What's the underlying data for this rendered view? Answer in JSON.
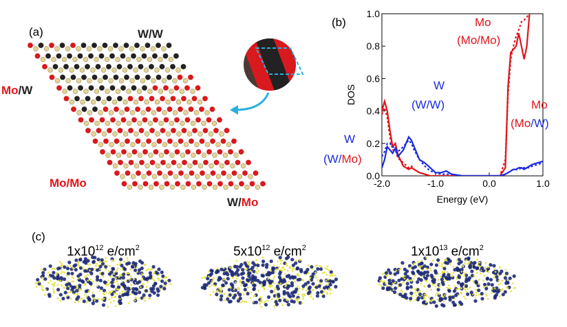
{
  "panel_a": {
    "label": "(a)",
    "top": "W/W",
    "left": [
      "Mo",
      "/W"
    ],
    "bottom_left": "Mo/Mo",
    "bottom_right": [
      "W/",
      "Mo"
    ]
  },
  "chart_data": {
    "type": "line",
    "label": "(b)",
    "xlabel": "Energy (eV)",
    "ylabel": "DOS",
    "x": [
      -2.0,
      -1.95,
      -1.9,
      -1.85,
      -1.8,
      -1.75,
      -1.7,
      -1.6,
      -1.5,
      -1.45,
      -1.4,
      -1.3,
      -1.2,
      -1.1,
      -1.0,
      -0.9,
      -0.8,
      -0.7,
      -0.5,
      0.0,
      0.2,
      0.3,
      0.35,
      0.4,
      0.45,
      0.5,
      0.55,
      0.6,
      0.65,
      0.7,
      0.75,
      0.8,
      0.9,
      1.0
    ],
    "series": [
      {
        "color": "#e0141b",
        "style": "solid",
        "values": [
          0.4,
          0.46,
          0.4,
          0.28,
          0.18,
          0.2,
          0.13,
          0.06,
          0.04,
          0.05,
          0.04,
          0.02,
          0.01,
          0,
          0,
          0,
          0,
          0,
          0,
          0,
          0,
          0.05,
          0.55,
          0.76,
          0.78,
          0.8,
          0.88,
          0.8,
          0.72,
          0.8,
          1.0,
          null,
          null,
          null
        ]
      },
      {
        "color": "#e0141b",
        "style": "dotted",
        "values": [
          0.38,
          0.42,
          0.36,
          0.24,
          0.16,
          0.16,
          0.11,
          0.08,
          0.05,
          0.06,
          0.04,
          0.02,
          0.01,
          0,
          0,
          0,
          0,
          0,
          0,
          0,
          0,
          0.1,
          0.5,
          0.72,
          0.8,
          0.86,
          0.9,
          0.95,
          0.96,
          0.98,
          1.0,
          null,
          null,
          null
        ]
      },
      {
        "color": "#1a2be0",
        "style": "solid",
        "values": [
          0.05,
          0.1,
          0.18,
          0.16,
          0.14,
          0.17,
          0.12,
          0.16,
          0.24,
          0.22,
          0.18,
          0.1,
          0.08,
          0.05,
          0.02,
          0.02,
          0.03,
          0.01,
          0,
          0,
          0,
          0.01,
          0.02,
          0.03,
          0.04,
          0.04,
          0.05,
          0.05,
          0.04,
          0.05,
          0.06,
          0.07,
          0.08,
          0.09
        ]
      },
      {
        "color": "#1a2be0",
        "style": "dotted",
        "values": [
          0.12,
          0.15,
          0.2,
          0.2,
          0.18,
          0.17,
          0.15,
          0.18,
          0.22,
          0.2,
          0.16,
          0.1,
          0.06,
          0.03,
          0.02,
          0.01,
          0.01,
          0.01,
          0,
          0,
          0,
          0.01,
          0.02,
          0.03,
          0.04,
          0.04,
          0.04,
          0.05,
          0.05,
          0.05,
          0.05,
          0.06,
          0.07,
          0.08
        ]
      }
    ],
    "xlim": [
      -2.0,
      1.0
    ],
    "ylim": [
      0,
      1.0
    ],
    "xticks": [
      {
        "value": -2.0,
        "label": "-2.0"
      },
      {
        "value": -1.0,
        "label": "-1.0"
      },
      {
        "value": 0,
        "label": "0.0"
      },
      {
        "value": 1.0,
        "label": "1.0"
      }
    ],
    "yticks": [
      {
        "value": 0,
        "label": "0.0"
      },
      0.2,
      0.4,
      0.6,
      0.8,
      {
        "value": 1.0,
        "label": "1.0"
      }
    ],
    "annotations": [
      [
        {
          "text": "Mo",
          "color": "#e0141b"
        }
      ],
      [
        {
          "text": "(Mo/Mo)",
          "color": "#e0141b"
        }
      ],
      [
        {
          "text": "W",
          "color": "#1a2be0"
        }
      ],
      [
        {
          "text": "(W/W)",
          "color": "#1a2be0"
        }
      ],
      [
        {
          "text": "Mo",
          "color": "#e0141b"
        }
      ],
      [
        {
          "text": "(Mo",
          "color": "#e0141b"
        },
        {
          "text": "/W)",
          "color": "#1a2be0"
        }
      ],
      [
        {
          "text": "W",
          "color": "#1a2be0"
        }
      ],
      [
        {
          "text": "(W/",
          "color": "#1a2be0"
        },
        {
          "text": "Mo)",
          "color": "#e0141b"
        }
      ]
    ]
  },
  "panel_c": {
    "label": "(c)",
    "densities": [
      {
        "base": "1x10",
        "exp": "12",
        "unit": "e/cm",
        "unit_exp": "2"
      },
      {
        "base": "5x10",
        "exp": "12",
        "unit": "e/cm",
        "unit_exp": "2"
      },
      {
        "base": "1x10",
        "exp": "13",
        "unit": "e/cm",
        "unit_exp": "2"
      }
    ]
  }
}
